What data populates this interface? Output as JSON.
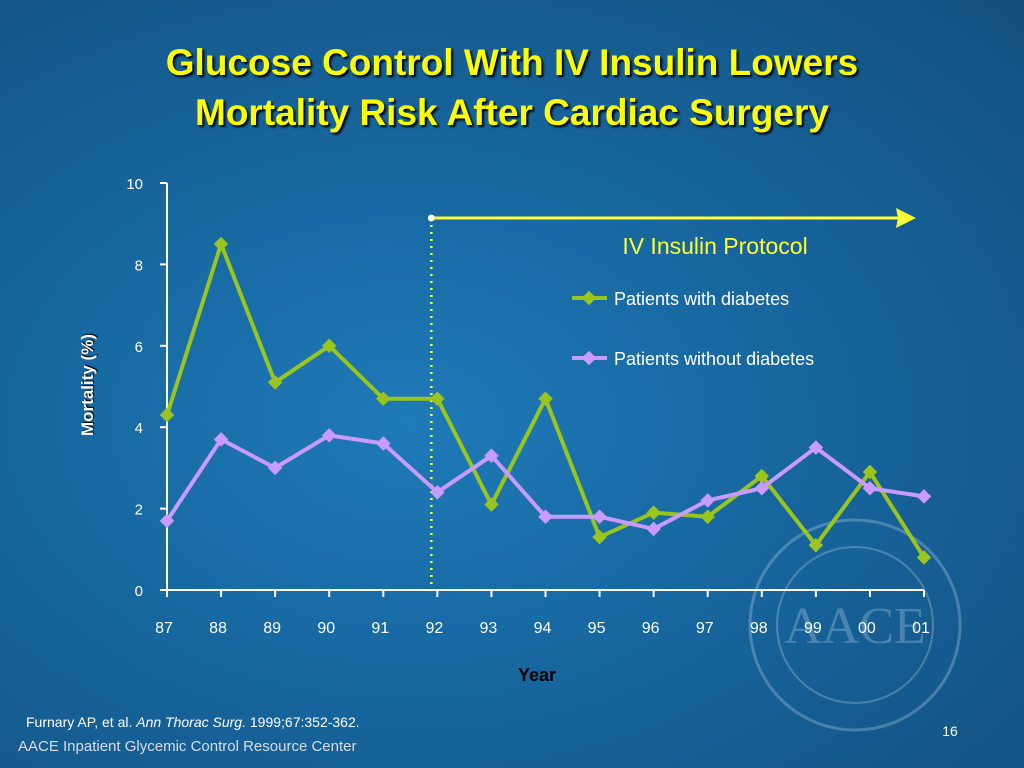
{
  "slide": {
    "title_line1": "Glucose Control With IV Insulin Lowers",
    "title_line2": "Mortality Risk After Cardiac Surgery",
    "citation_author": "Furnary AP, et al. ",
    "citation_journal": "Ann Thorac Surg.",
    "citation_ref": " 1999;67:352-362.",
    "footer": "AACE Inpatient Glycemic Control Resource Center",
    "page_number": "16",
    "seal_text": "AACE"
  },
  "colors": {
    "title": "#ffff00",
    "diabetes": "#9ac41e",
    "no_diabetes": "#c99bff",
    "protocol": "#ffff33"
  },
  "chart_data": {
    "type": "line",
    "xlabel": "Year",
    "ylabel": "Mortality (%)",
    "ylim": [
      0,
      10
    ],
    "yticks": [
      0,
      2,
      4,
      6,
      8,
      10
    ],
    "categories": [
      "87",
      "88",
      "89",
      "90",
      "91",
      "92",
      "93",
      "94",
      "95",
      "96",
      "97",
      "98",
      "99",
      "00",
      "01"
    ],
    "series": [
      {
        "name": "Patients with diabetes",
        "color": "#9ac41e",
        "values": [
          4.3,
          8.5,
          5.1,
          6.0,
          4.7,
          4.7,
          2.1,
          4.7,
          1.3,
          1.9,
          1.8,
          2.8,
          1.1,
          2.9,
          0.8
        ]
      },
      {
        "name": "Patients without diabetes",
        "color": "#c99bff",
        "values": [
          1.7,
          3.7,
          3.0,
          3.8,
          3.6,
          2.4,
          3.3,
          1.8,
          1.8,
          1.5,
          2.2,
          2.5,
          3.5,
          2.5,
          2.3
        ]
      }
    ],
    "annotation": {
      "label": "IV Insulin Protocol",
      "start_category": "92"
    },
    "legend_position": "top-right"
  }
}
